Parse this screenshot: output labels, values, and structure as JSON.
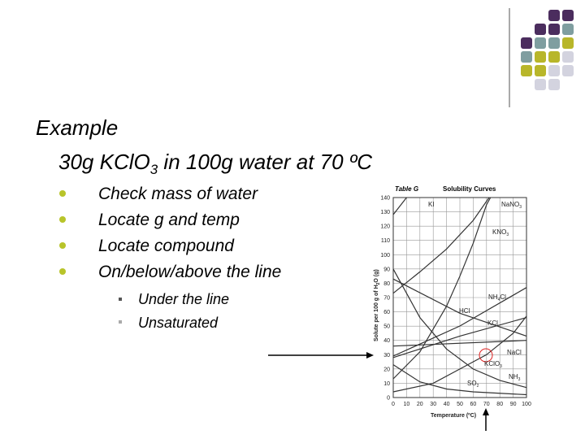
{
  "slide": {
    "heading": "Example",
    "problem": {
      "text": "30g KClO",
      "sub": "3",
      "rest": " in 100g water at 70 ºC"
    },
    "bullets": [
      "Check mass of water",
      "Locate g and temp",
      "Locate compound",
      "On/below/above the line"
    ],
    "sub_bullet": "Under the line",
    "sub_sub_bullet": "Unsaturated"
  },
  "figure": {
    "table": "Table G",
    "title": "Solubility Curves",
    "y_labels": [
      "0",
      "10",
      "20",
      "30",
      "40",
      "50",
      "60",
      "70",
      "80",
      "90",
      "100",
      "110",
      "120",
      "130",
      "140"
    ],
    "x_labels": [
      "0",
      "10",
      "20",
      "30",
      "40",
      "50",
      "60",
      "70",
      "80",
      "90",
      "100"
    ],
    "y_title": {
      "text": "Solute per 100 g of H",
      "sub": "2",
      "rest": "O (g)"
    },
    "x_title": "Temperature (ºC)",
    "curve_labels": [
      {
        "text": "KI"
      },
      {
        "text": "NaNO",
        "sub": "3"
      },
      {
        "text": "KNO",
        "sub": "3"
      },
      {
        "text": "NH",
        "sub": "4",
        "rest": "Cl"
      },
      {
        "text": "HCl"
      },
      {
        "text": "KCl"
      },
      {
        "text": "NaCl"
      },
      {
        "text": "KClO",
        "sub": "3"
      },
      {
        "text": "NH",
        "sub": "3"
      },
      {
        "text": "SO",
        "sub": "2"
      }
    ]
  }
}
